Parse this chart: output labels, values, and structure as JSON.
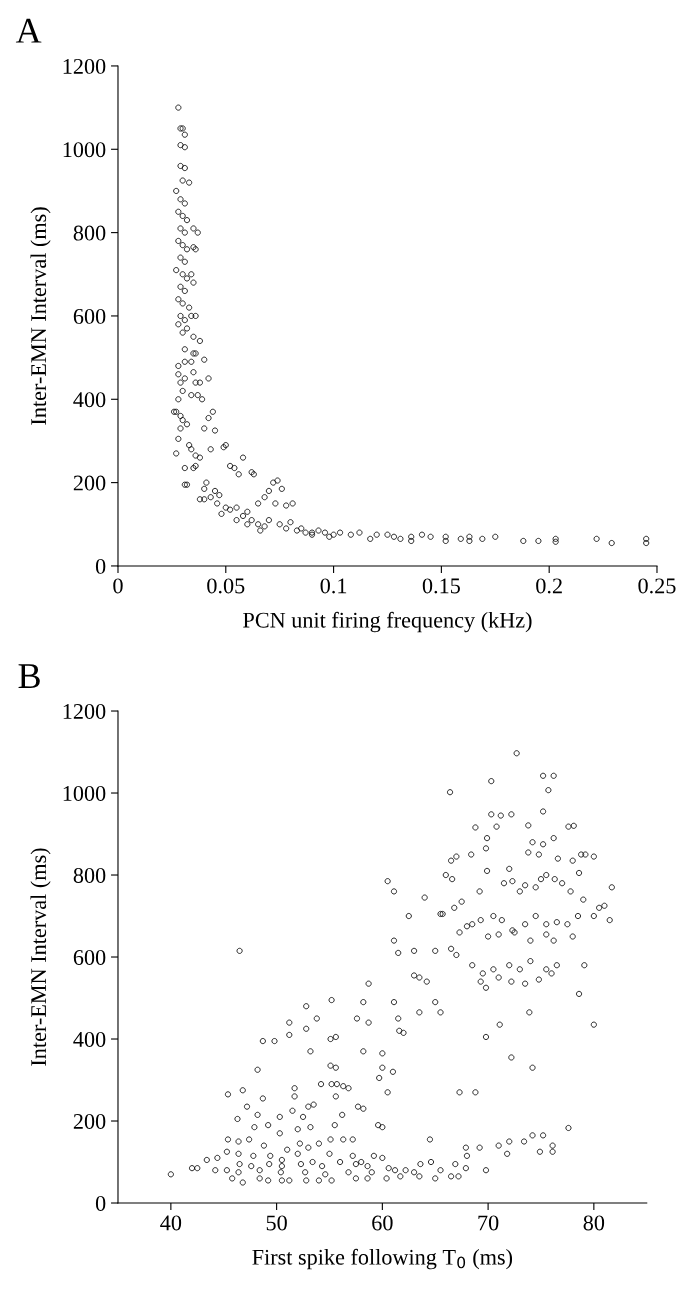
{
  "chart_data": [
    {
      "type": "scatter",
      "title": "A",
      "xlabel": "PCN unit firing frequency (kHz)",
      "ylabel": "Inter-EMN Interval (ms)",
      "xlim": [
        0,
        0.25
      ],
      "ylim": [
        0,
        1200
      ],
      "xticks": [
        0,
        0.05,
        0.1,
        0.15,
        0.2,
        0.25
      ],
      "yticks": [
        0,
        200,
        400,
        600,
        800,
        1000,
        1200
      ],
      "marker": "circle",
      "series": [
        {
          "color": "#000000",
          "x": [
            0.028,
            0.029,
            0.03,
            0.031,
            0.029,
            0.031,
            0.029,
            0.031,
            0.03,
            0.033,
            0.027,
            0.029,
            0.031,
            0.028,
            0.03,
            0.032,
            0.029,
            0.031,
            0.035,
            0.037,
            0.028,
            0.03,
            0.032,
            0.029,
            0.031,
            0.035,
            0.036,
            0.027,
            0.03,
            0.032,
            0.029,
            0.031,
            0.034,
            0.035,
            0.028,
            0.03,
            0.033,
            0.029,
            0.031,
            0.034,
            0.036,
            0.028,
            0.032,
            0.03,
            0.035,
            0.038,
            0.031,
            0.035,
            0.036,
            0.04,
            0.028,
            0.031,
            0.034,
            0.028,
            0.031,
            0.035,
            0.042,
            0.029,
            0.03,
            0.036,
            0.038,
            0.034,
            0.037,
            0.039,
            0.028,
            0.027,
            0.029,
            0.026,
            0.03,
            0.04,
            0.044,
            0.042,
            0.029,
            0.032,
            0.028,
            0.045,
            0.027,
            0.033,
            0.036,
            0.034,
            0.038,
            0.043,
            0.05,
            0.049,
            0.031,
            0.035,
            0.036,
            0.058,
            0.052,
            0.054,
            0.056,
            0.062,
            0.063,
            0.031,
            0.032,
            0.041,
            0.04,
            0.04,
            0.038,
            0.043,
            0.045,
            0.047,
            0.046,
            0.05,
            0.052,
            0.048,
            0.055,
            0.058,
            0.06,
            0.065,
            0.068,
            0.07,
            0.072,
            0.074,
            0.076,
            0.073,
            0.078,
            0.081,
            0.062,
            0.065,
            0.068,
            0.07,
            0.075,
            0.078,
            0.08,
            0.085,
            0.087,
            0.09,
            0.093,
            0.096,
            0.098,
            0.1,
            0.103,
            0.108,
            0.112,
            0.117,
            0.12,
            0.125,
            0.128,
            0.131,
            0.136,
            0.136,
            0.141,
            0.145,
            0.152,
            0.152,
            0.159,
            0.163,
            0.163,
            0.169,
            0.175,
            0.188,
            0.195,
            0.203,
            0.203,
            0.222,
            0.229,
            0.245,
            0.245,
            0.055,
            0.06,
            0.066,
            0.083,
            0.09
          ],
          "values": [
            1100,
            1050,
            1050,
            1035,
            1010,
            1005,
            960,
            955,
            925,
            920,
            900,
            880,
            870,
            850,
            840,
            830,
            810,
            800,
            810,
            800,
            780,
            770,
            760,
            740,
            730,
            765,
            760,
            710,
            700,
            690,
            670,
            660,
            700,
            680,
            640,
            630,
            620,
            600,
            590,
            600,
            600,
            580,
            570,
            560,
            550,
            540,
            520,
            510,
            510,
            495,
            480,
            490,
            490,
            460,
            450,
            465,
            450,
            440,
            420,
            440,
            440,
            410,
            410,
            400,
            400,
            370,
            360,
            370,
            350,
            330,
            370,
            355,
            330,
            340,
            305,
            325,
            270,
            290,
            265,
            280,
            260,
            280,
            290,
            285,
            235,
            235,
            240,
            260,
            240,
            235,
            220,
            225,
            220,
            195,
            195,
            200,
            185,
            160,
            160,
            165,
            180,
            170,
            150,
            140,
            135,
            125,
            140,
            120,
            130,
            150,
            165,
            180,
            200,
            205,
            185,
            150,
            145,
            150,
            110,
            100,
            95,
            110,
            100,
            90,
            105,
            90,
            80,
            80,
            85,
            80,
            70,
            75,
            80,
            75,
            80,
            65,
            75,
            75,
            70,
            65,
            70,
            60,
            75,
            70,
            70,
            60,
            65,
            70,
            60,
            65,
            70,
            60,
            60,
            65,
            58,
            65,
            55,
            65,
            55,
            110,
            100,
            85,
            85,
            75
          ]
        }
      ]
    },
    {
      "type": "scatter",
      "title": "B",
      "xlabel": "First spike following T$_{0}$ (ms)",
      "ylabel": "Inter-EMN Interval (ms)",
      "xlim": [
        35,
        85
      ],
      "ylim": [
        0,
        1200
      ],
      "xticks": [
        40,
        50,
        60,
        70,
        80
      ],
      "yticks": [
        0,
        200,
        400,
        600,
        800,
        1000,
        1200
      ],
      "marker": "circle",
      "series": [
        {
          "color": "#000000",
          "x": [
            72.7,
            75.2,
            76.2,
            70.3,
            75.7,
            66.4,
            75.2,
            70.3,
            71.2,
            72.2,
            68.8,
            70.8,
            73.8,
            77.6,
            78.1,
            69.9,
            69.8,
            74.2,
            75.2,
            76.2,
            73.8,
            74.8,
            68.4,
            67.0,
            66.5,
            76.6,
            78.0,
            78.8,
            79.2,
            80.0,
            69.9,
            72.0,
            78.6,
            66.0,
            66.6,
            60.5,
            61.1,
            64.0,
            65.7,
            66.8,
            67.5,
            69.2,
            71.5,
            72.3,
            73.0,
            73.5,
            74.5,
            75.0,
            75.5,
            76.3,
            77.0,
            77.8,
            79.0,
            81.7,
            62.5,
            65.5,
            68.5,
            69.3,
            70.5,
            71.3,
            72.3,
            73.5,
            74.5,
            75.5,
            76.5,
            77.5,
            78.5,
            80.0,
            80.5,
            81.0,
            81.5,
            67.3,
            68.0,
            70.0,
            71.0,
            72.5,
            74.0,
            75.5,
            76.2,
            78.0,
            61.1,
            61.5,
            63.0,
            65.0,
            66.5,
            67.0,
            68.5,
            69.5,
            70.5,
            72.0,
            73.0,
            74.0,
            75.5,
            76.5,
            79.1,
            69.3,
            69.8,
            71.0,
            72.2,
            73.5,
            74.8,
            76.0,
            63.5,
            64.2,
            78.6,
            63.0,
            58.7,
            55.2,
            52.8,
            53.8,
            58.2,
            65.0,
            63.5,
            65.5,
            61.1,
            57.6,
            58.7,
            61.5,
            62.0,
            61.6,
            51.2,
            52.8,
            51.2,
            48.7,
            49.8,
            55.1,
            55.6,
            53.2,
            58.2,
            60.0,
            69.8,
            73.9,
            71.1,
            80.0,
            72.2,
            74.2,
            48.2,
            55.1,
            55.6,
            59.7,
            60.0,
            61.0,
            54.2,
            55.2,
            55.7,
            56.3,
            56.8,
            51.7,
            51.7,
            45.4,
            46.8,
            48.7,
            55.6,
            60.5,
            67.3,
            68.8,
            47.2,
            48.2,
            50.3,
            51.5,
            52.5,
            53.0,
            53.5,
            56.2,
            57.7,
            58.2,
            46.3,
            47.9,
            49.2,
            50.3,
            52.0,
            53.2,
            55.5,
            59.6,
            60.0,
            77.6,
            45.4,
            46.4,
            47.4,
            48.8,
            51.0,
            52.2,
            53.0,
            54.0,
            55.1,
            56.3,
            57.2,
            64.5,
            74.2,
            75.2,
            76.1,
            72.0,
            73.4,
            71.0,
            69.2,
            67.9,
            45.3,
            46.4,
            47.8,
            49.4,
            50.5,
            52.0,
            53.4,
            55.0,
            57.2,
            58.0,
            59.2,
            60.0,
            68.0,
            71.8,
            74.9,
            76.1,
            43.4,
            44.4,
            46.5,
            47.6,
            49.3,
            50.5,
            52.3,
            54.3,
            56.0,
            57.5,
            58.6,
            60.6,
            62.2,
            63.6,
            64.6,
            66.9,
            42.0,
            42.5,
            44.2,
            45.3,
            46.4,
            48.4,
            50.4,
            52.7,
            54.6,
            56.8,
            59.0,
            61.2,
            63.0,
            65.5,
            67.9,
            69.8,
            40.0,
            45.8,
            46.8,
            48.4,
            49.2,
            50.5,
            51.2,
            52.8,
            54.0,
            55.2,
            57.5,
            58.6,
            60.4,
            61.7,
            63.5,
            65.0,
            66.5,
            67.2,
            46.5
          ],
          "values": [
            1097,
            1042,
            1042,
            1029,
            1007,
            1002,
            955,
            948,
            945,
            948,
            916,
            918,
            921,
            918,
            920,
            890,
            865,
            880,
            875,
            890,
            855,
            850,
            850,
            845,
            835,
            840,
            835,
            850,
            850,
            845,
            810,
            815,
            805,
            800,
            790,
            785,
            760,
            745,
            705,
            720,
            735,
            760,
            780,
            785,
            760,
            775,
            770,
            790,
            800,
            790,
            780,
            760,
            740,
            770,
            700,
            705,
            680,
            690,
            700,
            690,
            665,
            680,
            700,
            680,
            685,
            680,
            700,
            700,
            720,
            725,
            690,
            660,
            675,
            650,
            655,
            660,
            640,
            655,
            640,
            650,
            640,
            610,
            615,
            615,
            620,
            605,
            580,
            560,
            570,
            580,
            570,
            590,
            570,
            580,
            580,
            540,
            525,
            550,
            540,
            535,
            545,
            560,
            550,
            540,
            510,
            555,
            535,
            495,
            480,
            450,
            490,
            490,
            465,
            465,
            490,
            450,
            440,
            450,
            415,
            420,
            440,
            425,
            410,
            395,
            395,
            400,
            405,
            370,
            370,
            365,
            405,
            465,
            435,
            435,
            355,
            330,
            325,
            335,
            330,
            305,
            330,
            320,
            290,
            290,
            290,
            285,
            280,
            280,
            260,
            265,
            275,
            255,
            260,
            270,
            270,
            270,
            235,
            215,
            210,
            225,
            210,
            235,
            240,
            215,
            235,
            230,
            205,
            185,
            190,
            170,
            180,
            185,
            190,
            190,
            185,
            183,
            155,
            150,
            155,
            140,
            130,
            145,
            135,
            145,
            155,
            155,
            155,
            155,
            165,
            165,
            140,
            150,
            150,
            140,
            135,
            135,
            125,
            120,
            115,
            115,
            105,
            120,
            100,
            120,
            115,
            100,
            115,
            110,
            115,
            120,
            125,
            125,
            105,
            110,
            95,
            90,
            95,
            90,
            95,
            90,
            100,
            95,
            90,
            85,
            80,
            95,
            100,
            95,
            85,
            85,
            80,
            80,
            75,
            80,
            75,
            75,
            70,
            75,
            75,
            80,
            75,
            80,
            85,
            80,
            70,
            60,
            50,
            60,
            55,
            55,
            55,
            55,
            55,
            55,
            60,
            60,
            60,
            65,
            65,
            60,
            65,
            65,
            615
          ]
        }
      ]
    }
  ]
}
